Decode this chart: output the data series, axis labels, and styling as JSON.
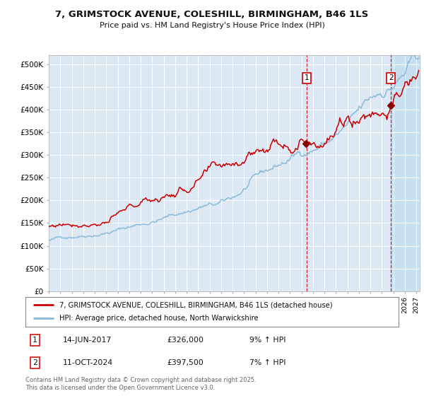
{
  "title_line1": "7, GRIMSTOCK AVENUE, COLESHILL, BIRMINGHAM, B46 1LS",
  "title_line2": "Price paid vs. HM Land Registry's House Price Index (HPI)",
  "ylabel_ticks": [
    "£0",
    "£50K",
    "£100K",
    "£150K",
    "£200K",
    "£250K",
    "£300K",
    "£350K",
    "£400K",
    "£450K",
    "£500K"
  ],
  "ytick_values": [
    0,
    50000,
    100000,
    150000,
    200000,
    250000,
    300000,
    350000,
    400000,
    450000,
    500000
  ],
  "ylim": [
    0,
    520000
  ],
  "xlim_start": 1995.0,
  "xlim_end": 2027.3,
  "sale1_date": 2017.45,
  "sale1_price": 326000,
  "sale2_date": 2024.79,
  "sale2_price": 397500,
  "line_color_property": "#cc0000",
  "line_color_hpi": "#88b8d8",
  "marker_color": "#8b0000",
  "bg_color": "#dce9f5",
  "grid_color": "#ffffff",
  "annotation1_date": "14-JUN-2017",
  "annotation1_price": "£326,000",
  "annotation1_hpi": "9% ↑ HPI",
  "annotation2_date": "11-OCT-2024",
  "annotation2_price": "£397,500",
  "annotation2_hpi": "7% ↑ HPI",
  "legend_label_property": "7, GRIMSTOCK AVENUE, COLESHILL, BIRMINGHAM, B46 1LS (detached house)",
  "legend_label_hpi": "HPI: Average price, detached house, North Warwickshire",
  "footer_text": "Contains HM Land Registry data © Crown copyright and database right 2025.\nThis data is licensed under the Open Government Licence v3.0."
}
